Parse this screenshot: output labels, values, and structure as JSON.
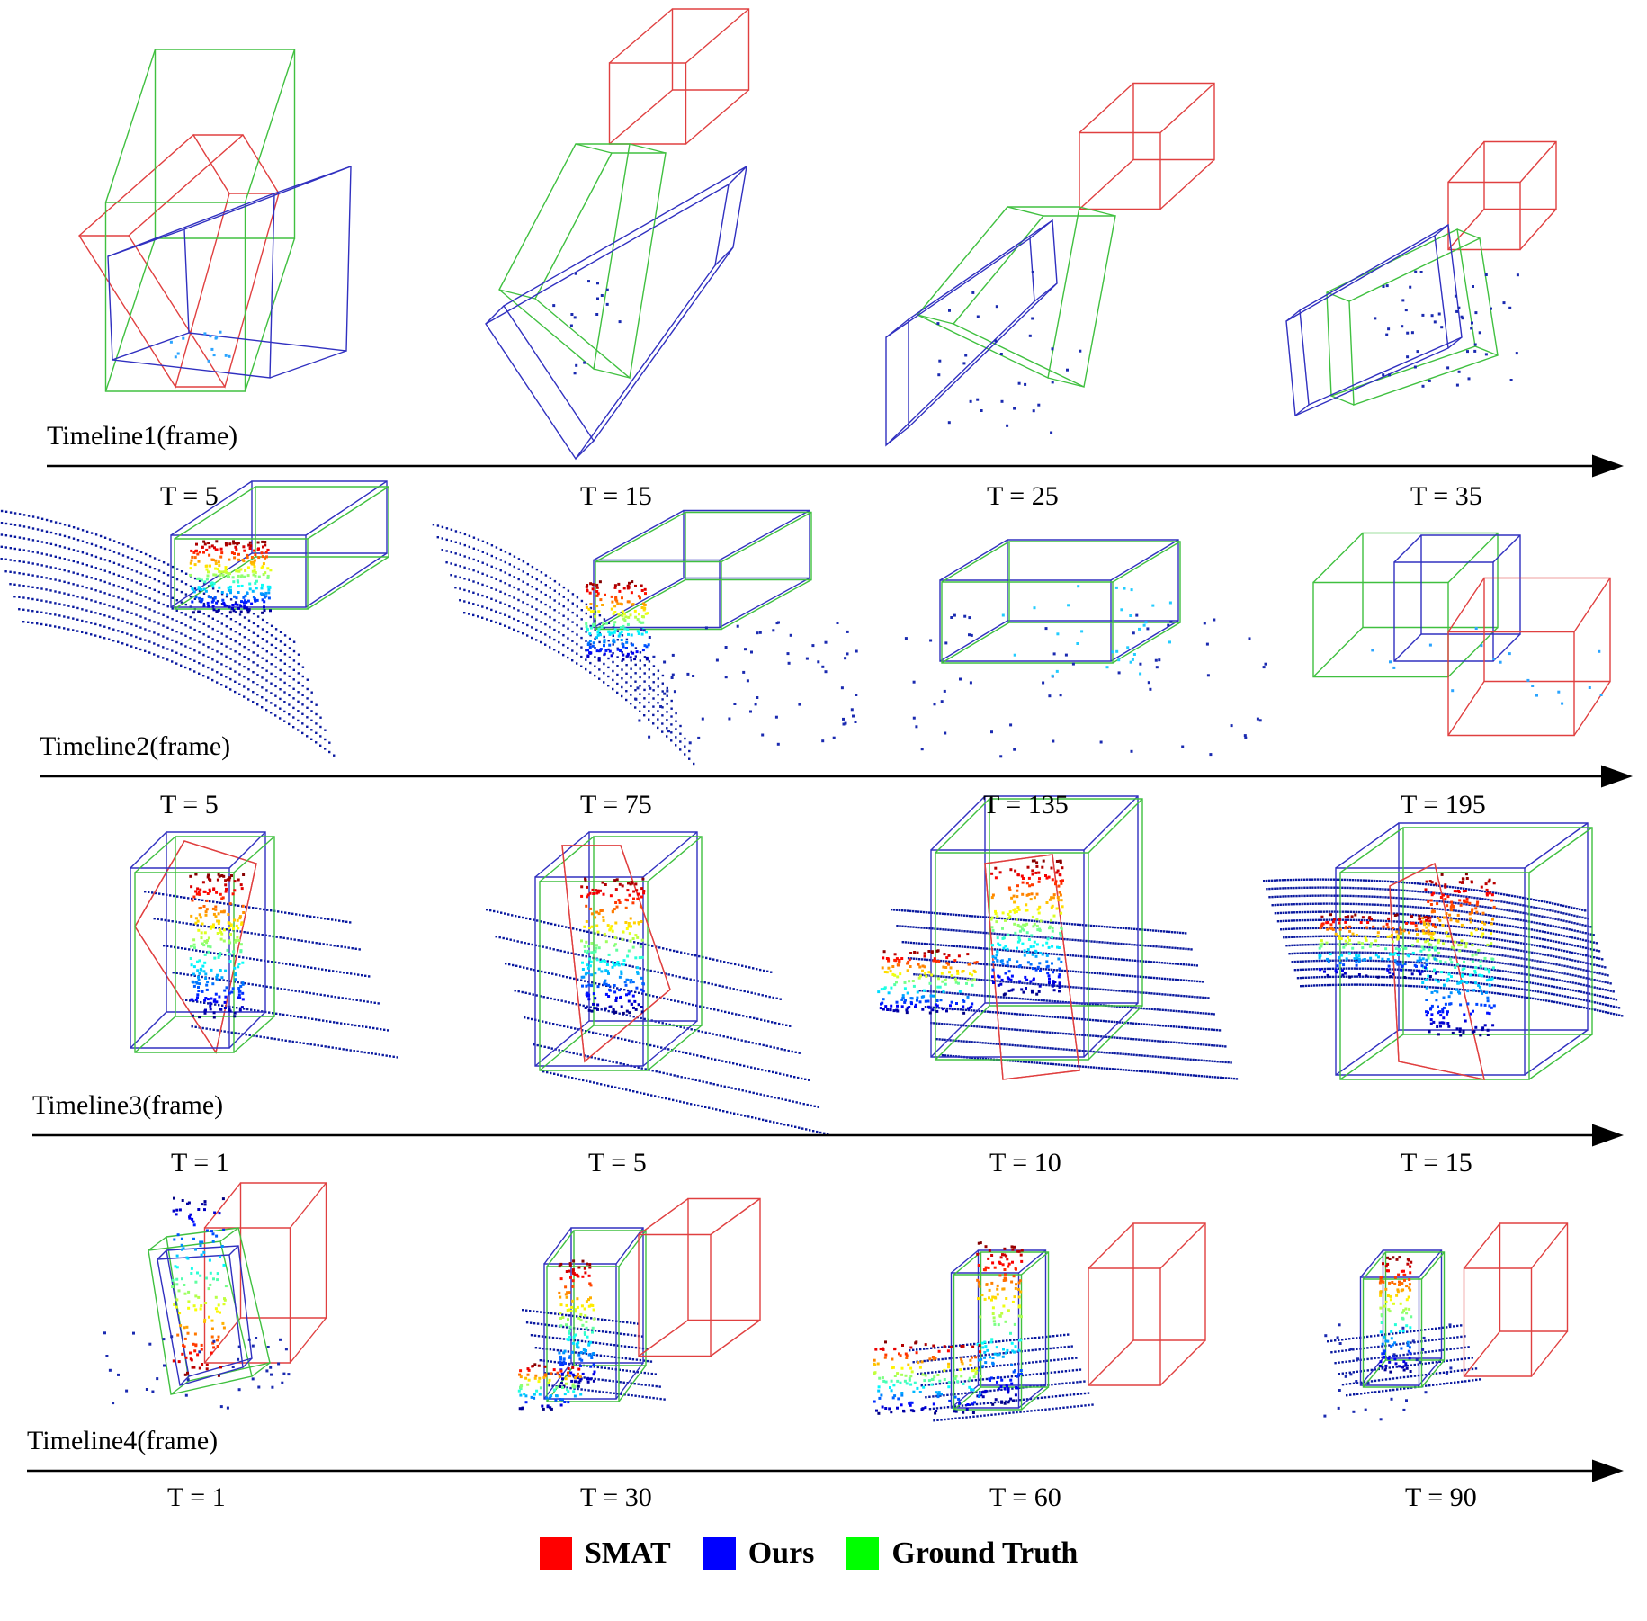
{
  "rows": [
    {
      "timeline": "Timeline1(frame)",
      "frames": [
        "T = 5",
        "T = 15",
        "T = 25",
        "T = 35"
      ]
    },
    {
      "timeline": "Timeline2(frame)",
      "frames": [
        "T = 5",
        "T = 75",
        "T = 135",
        "T = 195"
      ]
    },
    {
      "timeline": "Timeline3(frame)",
      "frames": [
        "T = 1",
        "T = 5",
        "T = 10",
        "T = 15"
      ]
    },
    {
      "timeline": "Timeline4(frame)",
      "frames": [
        "T = 1",
        "T = 30",
        "T = 60",
        "T = 90"
      ]
    }
  ],
  "legend": [
    {
      "label": "SMAT",
      "color": "#ff0000"
    },
    {
      "label": "Ours",
      "color": "#0000ff"
    },
    {
      "label": "Ground Truth",
      "color": "#00ff00"
    }
  ],
  "colors": {
    "smat_box": "#e04040",
    "ours_box": "#3030c0",
    "gt_box": "#40c040",
    "ground_points": "#0a1aa0"
  }
}
